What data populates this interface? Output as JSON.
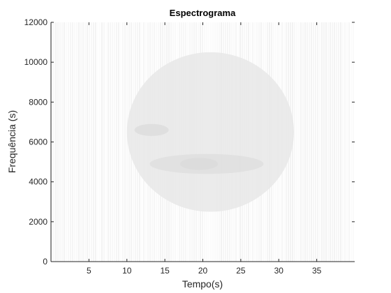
{
  "chart_data": {
    "type": "heatmap",
    "title": "Espectrograma",
    "xlabel": "Tempo(s)",
    "ylabel": "Frequência (s)",
    "xlim": [
      0,
      40
    ],
    "ylim": [
      0,
      12000
    ],
    "x_ticks": [
      5,
      10,
      15,
      20,
      25,
      30,
      35
    ],
    "y_ticks": [
      0,
      2000,
      4000,
      6000,
      8000,
      10000,
      12000
    ],
    "colormap": "gray (light = low, dark = high)",
    "grid": false,
    "regions": [
      {
        "t_start": 11,
        "t_end": 15.5,
        "f_low": 6300,
        "f_high": 6900,
        "intensity": 0.55
      },
      {
        "t_start": 13,
        "t_end": 28,
        "f_low": 4400,
        "f_high": 5400,
        "intensity": 0.45
      },
      {
        "t_start": 17,
        "t_end": 22,
        "f_low": 4600,
        "f_high": 5200,
        "intensity": 0.6
      },
      {
        "t_start": 10,
        "t_end": 32,
        "f_low": 2500,
        "f_high": 10500,
        "intensity": 0.08
      }
    ]
  }
}
